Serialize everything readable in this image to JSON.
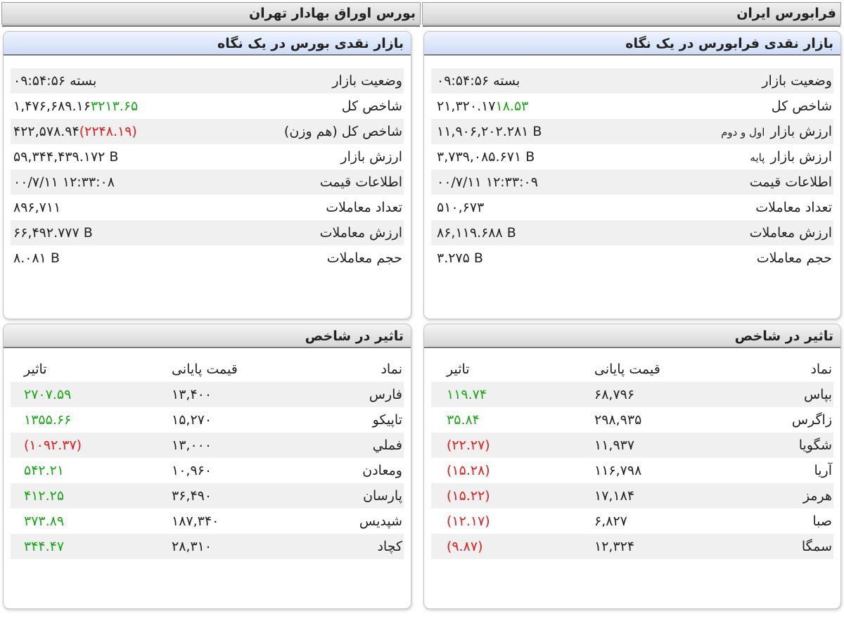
{
  "headers": {
    "farabourse": "فرابورس ایران",
    "tse": "بورس اوراق بهادار تهران"
  },
  "farabourse_glance": {
    "title": "بازار نقدی فرابورس در یک نگاه",
    "rows": [
      {
        "label": "وضعیت بازار",
        "value": "بسته ۰۹:۵۴:۵۶",
        "change": "",
        "dir": ""
      },
      {
        "label": "شاخص کل",
        "value": "۲۱,۳۲۰.۱۷",
        "change": "۱۸.۵۳",
        "dir": "pos"
      },
      {
        "label": "ارزش بازار اول و دوم",
        "label_main": "ارزش بازار",
        "label_small": "اول و دوم",
        "value": "۱۱,۹۰۶,۲۰۲.۲۸۱ B",
        "change": "",
        "dir": ""
      },
      {
        "label": "ارزش بازار پایه",
        "label_main": "ارزش بازار",
        "label_small": "پایه",
        "value": "۳,۷۳۹,۰۸۵.۶۷۱ B",
        "change": "",
        "dir": ""
      },
      {
        "label": "اطلاعات قیمت",
        "value": "۰۰/۷/۱۱ ۱۲:۳۳:۰۹",
        "change": "",
        "dir": ""
      },
      {
        "label": "تعداد معاملات",
        "value": "۵۱۰,۶۷۳",
        "change": "",
        "dir": ""
      },
      {
        "label": "ارزش معاملات",
        "value": "۸۶,۱۱۹.۶۸۸ B",
        "change": "",
        "dir": ""
      },
      {
        "label": "حجم معاملات",
        "value": "۳.۲۷۵ B",
        "change": "",
        "dir": ""
      }
    ]
  },
  "tse_glance": {
    "title": "بازار نقدی بورس در یک نگاه",
    "rows": [
      {
        "label": "وضعیت بازار",
        "value": "بسته ۰۹:۵۴:۵۶",
        "change": "",
        "dir": ""
      },
      {
        "label": "شاخص کل",
        "value": "۱,۴۷۶,۶۸۹.۱۶",
        "change": "۳۲۱۳.۶۵",
        "dir": "pos"
      },
      {
        "label": "شاخص کل (هم وزن)",
        "value": "۴۲۲,۵۷۸.۹۴",
        "change": "(۲۲۴۸.۱۹)",
        "dir": "neg"
      },
      {
        "label": "ارزش بازار",
        "value": "۵۹,۳۴۴,۴۳۹.۱۷۲ B",
        "change": "",
        "dir": ""
      },
      {
        "label": "اطلاعات قیمت",
        "value": "۰۰/۷/۱۱ ۱۲:۳۳:۰۸",
        "change": "",
        "dir": ""
      },
      {
        "label": "تعداد معاملات",
        "value": "۸۹۶,۷۱۱",
        "change": "",
        "dir": ""
      },
      {
        "label": "ارزش معاملات",
        "value": "۶۶,۴۹۲.۷۷۷ B",
        "change": "",
        "dir": ""
      },
      {
        "label": "حجم معاملات",
        "value": "۸.۰۸۱ B",
        "change": "",
        "dir": ""
      }
    ]
  },
  "farabourse_impact": {
    "title": "تاثیر در شاخص",
    "columns": {
      "symbol": "نماد",
      "price": "قیمت پایانی",
      "impact": "تاثیر"
    },
    "rows": [
      {
        "symbol": "بپاس",
        "price": "۶۸,۷۹۶",
        "impact": "۱۱۹.۷۴",
        "dir": "pos"
      },
      {
        "symbol": "زاگرس",
        "price": "۲۹۸,۹۳۵",
        "impact": "۳۵.۸۴",
        "dir": "pos"
      },
      {
        "symbol": "شگویا",
        "price": "۱۱,۹۳۷",
        "impact": "(۲۲.۲۷)",
        "dir": "neg"
      },
      {
        "symbol": "آریا",
        "price": "۱۱۶,۷۹۸",
        "impact": "(۱۵.۲۸)",
        "dir": "neg"
      },
      {
        "symbol": "هرمز",
        "price": "۱۷,۱۸۴",
        "impact": "(۱۵.۲۲)",
        "dir": "neg"
      },
      {
        "symbol": "صبا",
        "price": "۶,۸۲۷",
        "impact": "(۱۲.۱۷)",
        "dir": "neg"
      },
      {
        "symbol": "سمگا",
        "price": "۱۲,۳۲۴",
        "impact": "(۹.۸۷)",
        "dir": "neg"
      }
    ]
  },
  "tse_impact": {
    "title": "تاثیر در شاخص",
    "columns": {
      "symbol": "نماد",
      "price": "قیمت پایانی",
      "impact": "تاثیر"
    },
    "rows": [
      {
        "symbol": "فارس",
        "price": "۱۳,۴۰۰",
        "impact": "۲۷۰۷.۵۹",
        "dir": "pos"
      },
      {
        "symbol": "تاپیکو",
        "price": "۱۵,۲۷۰",
        "impact": "۱۳۵۵.۶۶",
        "dir": "pos"
      },
      {
        "symbol": "فملي",
        "price": "۱۳,۰۰۰",
        "impact": "(۱۰۹۲.۳۷)",
        "dir": "neg"
      },
      {
        "symbol": "ومعادن",
        "price": "۱۰,۹۶۰",
        "impact": "۵۴۲.۲۱",
        "dir": "pos"
      },
      {
        "symbol": "پارسان",
        "price": "۳۶,۴۹۰",
        "impact": "۴۱۲.۲۵",
        "dir": "pos"
      },
      {
        "symbol": "شپدیس",
        "price": "۱۸۷,۳۴۰",
        "impact": "۳۷۳.۸۹",
        "dir": "pos"
      },
      {
        "symbol": "کچاد",
        "price": "۲۸,۳۱۰",
        "impact": "۳۴۴.۴۷",
        "dir": "pos"
      }
    ]
  },
  "colors": {
    "positive": "#1aa51a",
    "negative": "#e02020",
    "header_blue": "#cddcf6"
  }
}
